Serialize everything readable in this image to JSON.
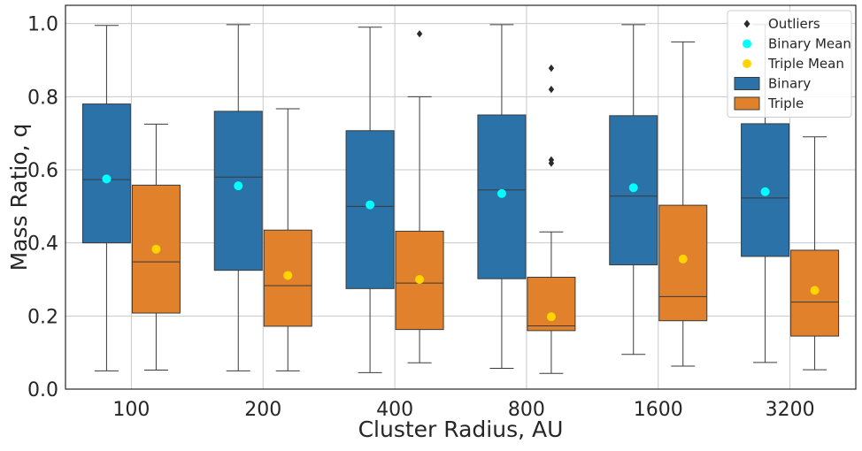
{
  "chart_data": {
    "type": "box",
    "xlabel": "Cluster Radius, AU",
    "ylabel": "Mass Ratio, q",
    "categories": [
      "100",
      "200",
      "400",
      "800",
      "1600",
      "3200"
    ],
    "ylim": [
      0.0,
      1.05
    ],
    "yticks": [
      0.0,
      0.2,
      0.4,
      0.6,
      0.8,
      1.0
    ],
    "ytick_labels": [
      "0.0",
      "0.2",
      "0.4",
      "0.6",
      "0.8",
      "1.0"
    ],
    "grid": true,
    "legend_position": "top-right",
    "series": [
      {
        "name": "Binary",
        "color": "#2a72a8",
        "boxes": [
          {
            "whisker_low": 0.05,
            "q1": 0.4,
            "median": 0.573,
            "q3": 0.78,
            "whisker_high": 0.995,
            "mean": 0.575,
            "outliers": []
          },
          {
            "whisker_low": 0.05,
            "q1": 0.325,
            "median": 0.58,
            "q3": 0.76,
            "whisker_high": 0.997,
            "mean": 0.556,
            "outliers": []
          },
          {
            "whisker_low": 0.045,
            "q1": 0.275,
            "median": 0.5,
            "q3": 0.707,
            "whisker_high": 0.99,
            "mean": 0.504,
            "outliers": []
          },
          {
            "whisker_low": 0.057,
            "q1": 0.302,
            "median": 0.545,
            "q3": 0.75,
            "whisker_high": 0.997,
            "mean": 0.535,
            "outliers": []
          },
          {
            "whisker_low": 0.095,
            "q1": 0.34,
            "median": 0.528,
            "q3": 0.748,
            "whisker_high": 0.997,
            "mean": 0.551,
            "outliers": []
          },
          {
            "whisker_low": 0.073,
            "q1": 0.363,
            "median": 0.523,
            "q3": 0.726,
            "whisker_high": 0.997,
            "mean": 0.54,
            "outliers": []
          }
        ]
      },
      {
        "name": "Triple",
        "color": "#e1812c",
        "boxes": [
          {
            "whisker_low": 0.052,
            "q1": 0.208,
            "median": 0.348,
            "q3": 0.558,
            "whisker_high": 0.725,
            "mean": 0.383,
            "outliers": []
          },
          {
            "whisker_low": 0.05,
            "q1": 0.172,
            "median": 0.283,
            "q3": 0.435,
            "whisker_high": 0.767,
            "mean": 0.311,
            "outliers": []
          },
          {
            "whisker_low": 0.072,
            "q1": 0.163,
            "median": 0.29,
            "q3": 0.432,
            "whisker_high": 0.8,
            "mean": 0.3,
            "outliers": [
              0.972
            ]
          },
          {
            "whisker_low": 0.043,
            "q1": 0.16,
            "median": 0.173,
            "q3": 0.306,
            "whisker_high": 0.43,
            "mean": 0.198,
            "outliers": [
              0.618,
              0.627,
              0.82,
              0.878
            ]
          },
          {
            "whisker_low": 0.063,
            "q1": 0.187,
            "median": 0.253,
            "q3": 0.503,
            "whisker_high": 0.95,
            "mean": 0.356,
            "outliers": []
          },
          {
            "whisker_low": 0.053,
            "q1": 0.145,
            "median": 0.238,
            "q3": 0.38,
            "whisker_high": 0.69,
            "mean": 0.27,
            "outliers": []
          }
        ]
      }
    ],
    "legend": [
      {
        "label": "Outliers",
        "kind": "diamond",
        "color": "#2b2b2b"
      },
      {
        "label": "Binary Mean",
        "kind": "dot",
        "color": "#00ffff"
      },
      {
        "label": "Triple Mean",
        "kind": "dot",
        "color": "#ffd400"
      },
      {
        "label": "Binary",
        "kind": "patch",
        "color": "#2a72a8"
      },
      {
        "label": "Triple",
        "kind": "patch",
        "color": "#e1812c"
      }
    ],
    "mean_colors": {
      "Binary": "#00ffff",
      "Triple": "#ffd400"
    },
    "outlier_color": "#2b2b2b",
    "gridline_color": "#c8c8c8"
  }
}
